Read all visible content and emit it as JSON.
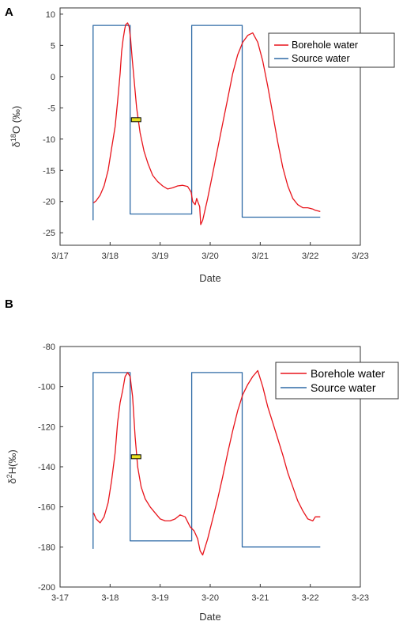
{
  "figure": {
    "panels": [
      {
        "letter": "A",
        "ylabel_main": "δ",
        "ylabel_sup": "18",
        "ylabel_rest": "O (‰)",
        "xlabel": "Date"
      },
      {
        "letter": "B",
        "ylabel_main": "δ",
        "ylabel_sup": "2",
        "ylabel_rest": "H(‰)",
        "xlabel": "Date"
      }
    ]
  },
  "chart_data": [
    {
      "type": "line",
      "panel": "A",
      "xlabel": "Date",
      "ylabel": "δ18O (‰)",
      "xlim": [
        0,
        6
      ],
      "xticks": [
        "3/17",
        "3/18",
        "3/19",
        "3/20",
        "3/21",
        "3/22",
        "3/23"
      ],
      "ylim": [
        -27,
        11
      ],
      "yticks": [
        10,
        5,
        0,
        -5,
        -10,
        -15,
        -20,
        -25
      ],
      "grid": false,
      "legend_position": "top-right",
      "marker": {
        "x": 1.52,
        "y": -6.9,
        "color": "#e8e020"
      },
      "series": [
        {
          "name": "Borehole water",
          "color": "#e8141b",
          "x": [
            0.67,
            0.72,
            0.8,
            0.88,
            0.96,
            1.03,
            1.1,
            1.15,
            1.2,
            1.23,
            1.26,
            1.29,
            1.31,
            1.35,
            1.38,
            1.41,
            1.44,
            1.48,
            1.53,
            1.6,
            1.68,
            1.76,
            1.85,
            1.95,
            2.05,
            2.15,
            2.25,
            2.35,
            2.45,
            2.55,
            2.62,
            2.65,
            2.7,
            2.73,
            2.76,
            2.79,
            2.81,
            2.85,
            2.95,
            3.05,
            3.15,
            3.25,
            3.35,
            3.45,
            3.55,
            3.65,
            3.75,
            3.85,
            3.95,
            4.05,
            4.15,
            4.25,
            4.35,
            4.45,
            4.55,
            4.65,
            4.75,
            4.85,
            4.95,
            5.05,
            5.1,
            5.2
          ],
          "y": [
            -20.2,
            -19.9,
            -19.0,
            -17.5,
            -15.0,
            -11.5,
            -8.0,
            -4.0,
            0.5,
            4.0,
            6.0,
            7.5,
            8.3,
            8.6,
            8.0,
            6.0,
            3.0,
            -0.5,
            -5.0,
            -9.0,
            -12.0,
            -14.0,
            -15.8,
            -16.8,
            -17.5,
            -18.0,
            -17.8,
            -17.5,
            -17.4,
            -17.6,
            -18.5,
            -20.0,
            -20.5,
            -19.5,
            -20.2,
            -20.8,
            -23.7,
            -23.0,
            -19.5,
            -15.5,
            -11.5,
            -7.5,
            -3.5,
            0.5,
            3.5,
            5.5,
            6.6,
            7.0,
            5.5,
            2.5,
            -1.5,
            -6.0,
            -10.5,
            -14.5,
            -17.5,
            -19.5,
            -20.5,
            -21.0,
            -21.0,
            -21.2,
            -21.4,
            -21.6
          ]
        },
        {
          "name": "Source water",
          "color": "#2e6aa6",
          "x": [
            0.66,
            0.66,
            1.4,
            1.4,
            2.63,
            2.63,
            3.64,
            3.64,
            5.2
          ],
          "y": [
            -23.0,
            8.2,
            8.2,
            -22.0,
            -22.0,
            8.2,
            8.2,
            -22.5,
            -22.5
          ]
        }
      ]
    },
    {
      "type": "line",
      "panel": "B",
      "xlabel": "Date",
      "ylabel": "δ2H(‰)",
      "xlim": [
        0,
        6
      ],
      "xticks": [
        "3-17",
        "3-18",
        "3-19",
        "3-20",
        "3-21",
        "3-22",
        "3-23"
      ],
      "ylim": [
        -200,
        -80
      ],
      "yticks": [
        -80,
        -100,
        -120,
        -140,
        -160,
        -180,
        -200
      ],
      "grid": false,
      "legend_position": "top-right",
      "marker": {
        "x": 1.52,
        "y": -135,
        "color": "#e8e020"
      },
      "series": [
        {
          "name": "Borehole water",
          "color": "#e8141b",
          "x": [
            0.67,
            0.72,
            0.8,
            0.88,
            0.96,
            1.03,
            1.1,
            1.15,
            1.2,
            1.25,
            1.3,
            1.35,
            1.4,
            1.45,
            1.5,
            1.55,
            1.62,
            1.7,
            1.8,
            1.9,
            2.0,
            2.1,
            2.2,
            2.3,
            2.4,
            2.5,
            2.6,
            2.68,
            2.75,
            2.8,
            2.85,
            2.95,
            3.05,
            3.15,
            3.25,
            3.35,
            3.45,
            3.55,
            3.65,
            3.75,
            3.85,
            3.95,
            4.05,
            4.15,
            4.25,
            4.35,
            4.45,
            4.55,
            4.65,
            4.75,
            4.85,
            4.95,
            5.05,
            5.1,
            5.2
          ],
          "y": [
            -163,
            -166,
            -168,
            -165,
            -158,
            -147,
            -133,
            -118,
            -108,
            -102,
            -95,
            -93,
            -95,
            -105,
            -125,
            -140,
            -150,
            -156,
            -160,
            -163,
            -166,
            -167,
            -167,
            -166,
            -164,
            -165,
            -170,
            -172,
            -176,
            -182,
            -184,
            -176,
            -166,
            -156,
            -145,
            -133,
            -122,
            -112,
            -104,
            -99,
            -95,
            -92,
            -100,
            -110,
            -118,
            -126,
            -134,
            -143,
            -150,
            -157,
            -162,
            -166,
            -167,
            -165,
            -165
          ]
        },
        {
          "name": "Source water",
          "color": "#2e6aa6",
          "x": [
            0.66,
            0.66,
            1.4,
            1.4,
            2.63,
            2.63,
            3.64,
            3.64,
            5.2
          ],
          "y": [
            -181,
            -93,
            -93,
            -177,
            -177,
            -93,
            -93,
            -180,
            -180
          ]
        }
      ]
    }
  ]
}
